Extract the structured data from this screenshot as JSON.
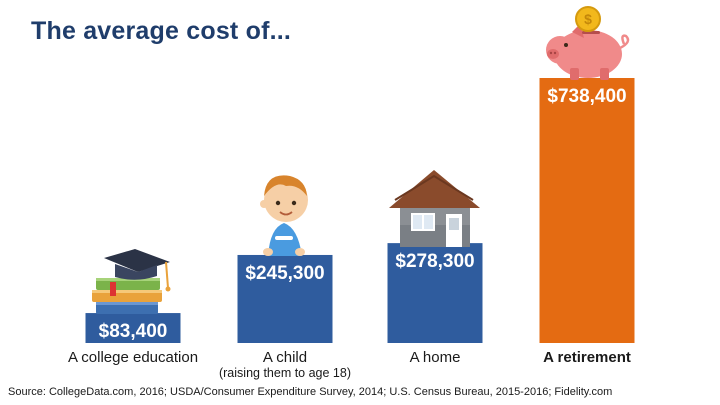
{
  "title": "The average cost of...",
  "source": "Source: CollegeData.com, 2016; USDA/Consumer Expenditure Survey, 2014;  U.S. Census Bureau, 2015-2016; Fidelity.com",
  "colors": {
    "blue": "#2f5c9e",
    "orange": "#e46b12",
    "title": "#1f3d6b"
  },
  "icons": [
    "graduation-books-icon",
    "baby-icon",
    "house-icon",
    "piggy-bank-coin-icon"
  ],
  "chart_data": {
    "type": "bar",
    "categories": [
      "A college education",
      "A child",
      "A home",
      "A retirement"
    ],
    "category_sublabels": [
      "",
      "(raising them to age 18)",
      "",
      ""
    ],
    "values": [
      83400,
      245300,
      278300,
      738400
    ],
    "value_labels": [
      "$83,400",
      "$245,300",
      "$278,300",
      "$738,400"
    ],
    "bar_colors": [
      "#2f5c9e",
      "#2f5c9e",
      "#2f5c9e",
      "#e46b12"
    ],
    "emphasized_category": "A retirement",
    "ylim": [
      0,
      738400
    ],
    "grid": false,
    "legend": "none"
  }
}
